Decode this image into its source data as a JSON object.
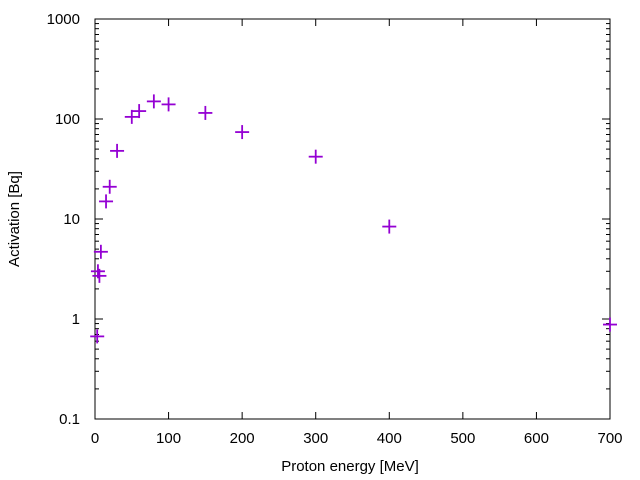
{
  "chart_data": {
    "type": "scatter",
    "xlabel": "Proton energy [MeV]",
    "ylabel": "Activation [Bq]",
    "xlim": [
      0,
      700
    ],
    "ylim": [
      0.1,
      1000
    ],
    "y_scale": "log",
    "grid": false,
    "legend": "none",
    "marker": "plus",
    "color": "#9400d3",
    "x_ticks": [
      "0",
      "100",
      "200",
      "300",
      "400",
      "500",
      "600",
      "700"
    ],
    "y_ticks": [
      "0.1",
      "1",
      "10",
      "100",
      "1000"
    ],
    "points": [
      {
        "x": 3,
        "y": 0.67
      },
      {
        "x": 4,
        "y": 3.0
      },
      {
        "x": 6,
        "y": 2.7
      },
      {
        "x": 8,
        "y": 4.7
      },
      {
        "x": 15,
        "y": 15
      },
      {
        "x": 20,
        "y": 21
      },
      {
        "x": 30,
        "y": 48
      },
      {
        "x": 50,
        "y": 105
      },
      {
        "x": 60,
        "y": 120
      },
      {
        "x": 80,
        "y": 150
      },
      {
        "x": 100,
        "y": 140
      },
      {
        "x": 150,
        "y": 115
      },
      {
        "x": 200,
        "y": 74
      },
      {
        "x": 300,
        "y": 42
      },
      {
        "x": 400,
        "y": 8.4
      },
      {
        "x": 700,
        "y": 0.88
      }
    ]
  }
}
